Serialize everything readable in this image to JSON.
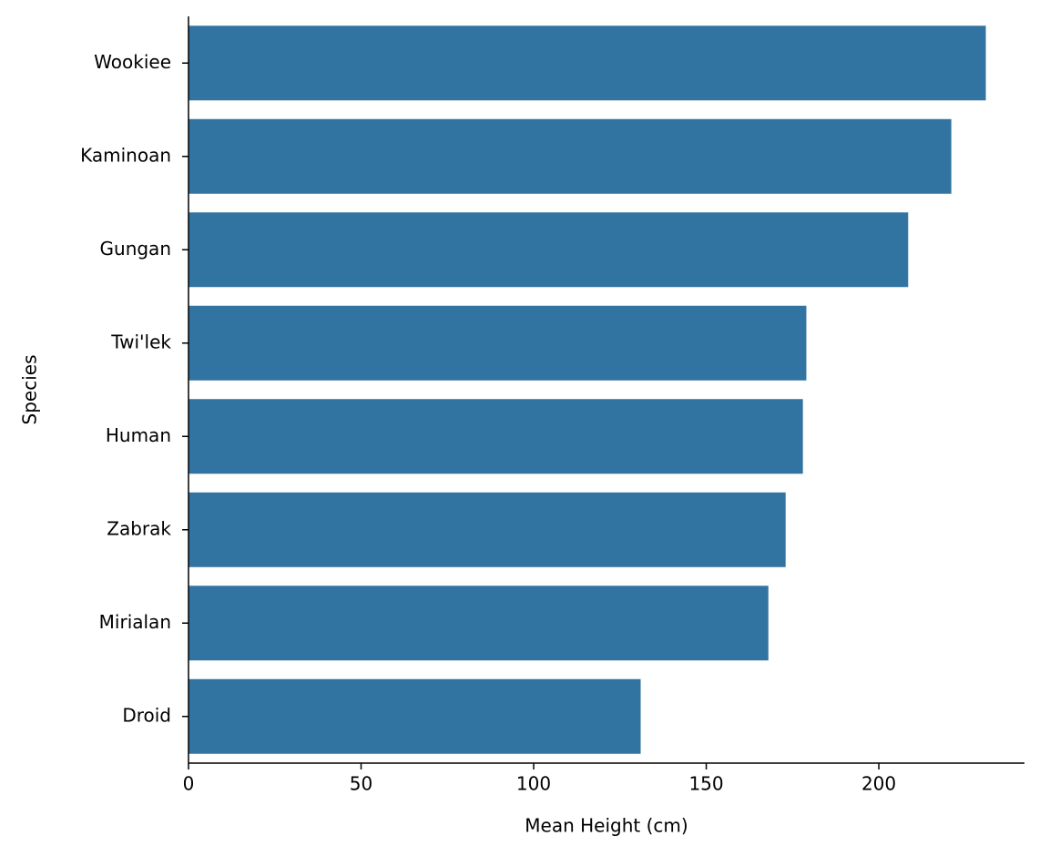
{
  "chart_data": {
    "type": "barh",
    "xlabel": "Mean Height (cm)",
    "ylabel": "Species",
    "categories": [
      "Wookiee",
      "Kaminoan",
      "Gungan",
      "Twi'lek",
      "Human",
      "Zabrak",
      "Mirialan",
      "Droid"
    ],
    "values": [
      231,
      221,
      208.5,
      179,
      178,
      173,
      168,
      131
    ],
    "color": "#3274a1",
    "xlim": [
      0,
      242.2
    ],
    "xticks": [
      0,
      50,
      100,
      150,
      200
    ]
  }
}
